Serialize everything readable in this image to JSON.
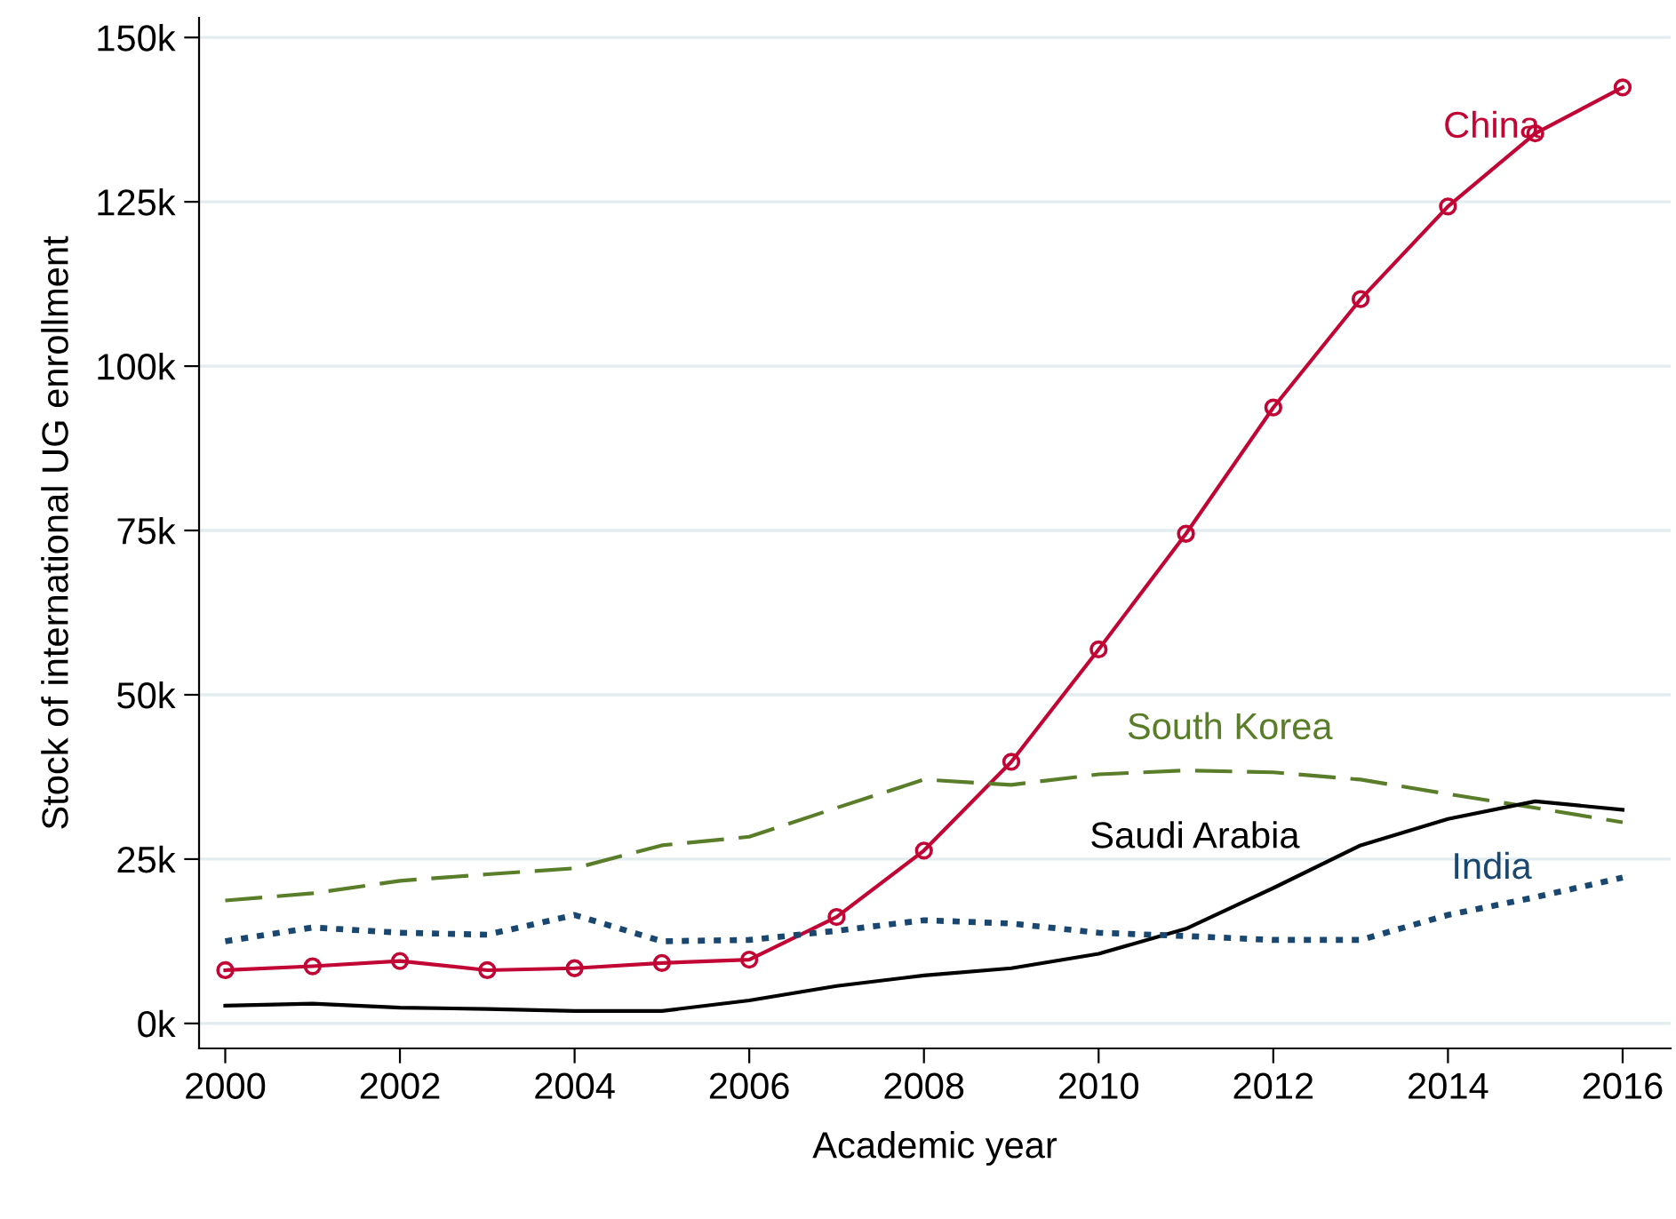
{
  "chart_data": {
    "type": "line",
    "xlabel": "Academic year",
    "ylabel": "Stock of international UG enrollment",
    "x": [
      2000,
      2001,
      2002,
      2003,
      2004,
      2005,
      2006,
      2007,
      2008,
      2009,
      2010,
      2011,
      2012,
      2013,
      2014,
      2015,
      2016
    ],
    "series": [
      {
        "name": "China",
        "color": "#c10534",
        "marker": "circle",
        "line_style": "solid",
        "values": [
          8.1,
          8.7,
          9.5,
          8.1,
          8.4,
          9.2,
          9.7,
          16.2,
          26.3,
          39.8,
          56.9,
          74.5,
          93.7,
          110.2,
          124.3,
          135.4,
          142.4
        ]
      },
      {
        "name": "South Korea",
        "color": "#5a7d2a",
        "marker": "none",
        "line_style": "dashed",
        "values": [
          18.7,
          19.8,
          21.7,
          22.7,
          23.6,
          27.1,
          28.4,
          32.8,
          37.1,
          36.3,
          37.9,
          38.5,
          38.2,
          37.1,
          34.9,
          32.8,
          30.6
        ]
      },
      {
        "name": "Saudi Arabia",
        "color": "#000000",
        "marker": "none",
        "line_style": "solid",
        "values": [
          2.7,
          3.0,
          2.4,
          2.2,
          1.9,
          1.9,
          3.5,
          5.7,
          7.3,
          8.4,
          10.6,
          14.4,
          20.6,
          27.1,
          31.1,
          33.8,
          32.5
        ]
      },
      {
        "name": "India",
        "color": "#1a476f",
        "marker": "none",
        "line_style": "dotted",
        "values": [
          12.5,
          14.6,
          13.8,
          13.5,
          16.5,
          12.5,
          12.7,
          14.1,
          15.7,
          15.2,
          13.8,
          13.3,
          12.7,
          12.7,
          16.5,
          19.2,
          22.2
        ]
      }
    ],
    "xlim": [
      1999.7,
      2016.55
    ],
    "xticks": [
      2000,
      2002,
      2004,
      2006,
      2008,
      2010,
      2012,
      2014,
      2016
    ],
    "ylim": [
      -3.8,
      153
    ],
    "yticks": [
      {
        "value": 0,
        "label": "0k"
      },
      {
        "value": 25,
        "label": "25k"
      },
      {
        "value": 50,
        "label": "50k"
      },
      {
        "value": 75,
        "label": "75k"
      },
      {
        "value": 100,
        "label": "100k"
      },
      {
        "value": 125,
        "label": "125k"
      },
      {
        "value": 150,
        "label": "150k"
      }
    ],
    "grid": "y",
    "legend": false
  }
}
